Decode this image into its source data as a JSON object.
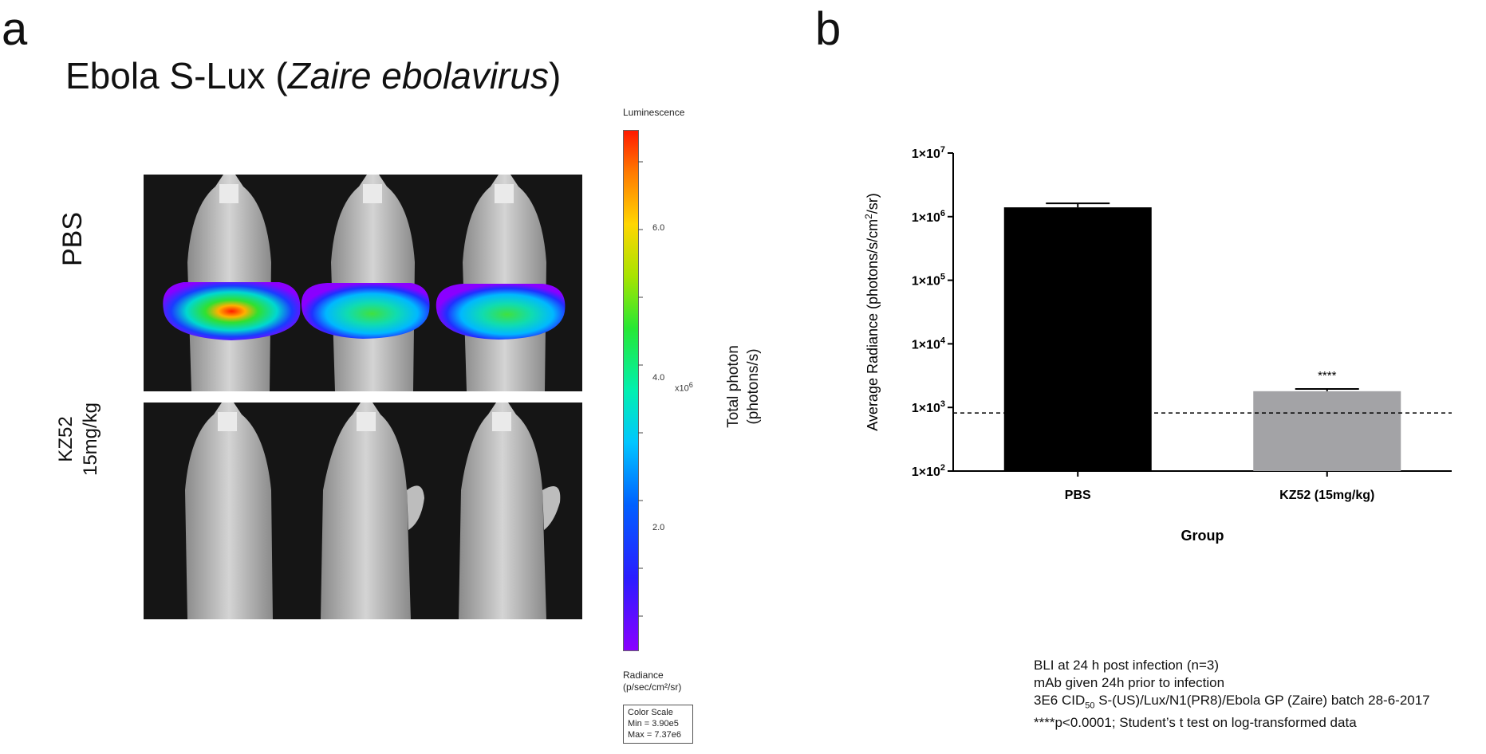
{
  "panel_a": {
    "letter": "a",
    "title_prefix": "Ebola S-Lux (",
    "title_italic": "Zaire ebolavirus",
    "title_suffix": ")",
    "group_pbs": "PBS",
    "group_kz52_line1": "KZ52",
    "group_kz52_line2": "15mg/kg",
    "colorbar": {
      "top_label": "Luminescence",
      "ticks": [
        "6.0",
        "4.0",
        "2.0"
      ],
      "multiplier": "x10",
      "multiplier_exp": "6",
      "unit_line1": "Radiance",
      "unit_line2": "(p/sec/cm²/sr)",
      "scale_title": "Color Scale",
      "scale_min": "Min = 3.90e5",
      "scale_max": "Max = 7.37e6",
      "side_label_line1": "Total photon",
      "side_label_line2": "(photons/s)"
    }
  },
  "panel_b": {
    "letter": "b",
    "notes": {
      "line1": "BLI at 24 h post infection (n=3)",
      "line2": "mAb given 24h prior to infection",
      "line3_pre": "3E6 CID",
      "line3_sub": "50",
      "line3_post": " S-(US)/Lux/N1(PR8)/Ebola GP (Zaire) batch 28-6-2017",
      "line4": "****p<0.0001; Student’s t test on log-transformed data"
    }
  },
  "chart_data": {
    "type": "bar",
    "categories": [
      "PBS",
      "KZ52 (15mg/kg)"
    ],
    "values": [
      1400000,
      1800
    ],
    "errors_upper": [
      1620000,
      1950
    ],
    "colors": [
      "#000000",
      "#a3a3a6"
    ],
    "significance": [
      "",
      "****"
    ],
    "xlabel": "Group",
    "ylabel": "Average Radiance (photons/s/cm²/sr)",
    "ylabel_parts": {
      "pre": "Average Radiance (photons/s/cm",
      "sup": "2",
      "post": "/sr)"
    },
    "y_scale": "log",
    "ylim": [
      100,
      10000000
    ],
    "yticks": [
      {
        "value": 100,
        "base": "1×10",
        "exp": "2"
      },
      {
        "value": 1000,
        "base": "1×10",
        "exp": "3"
      },
      {
        "value": 10000,
        "base": "1×10",
        "exp": "4"
      },
      {
        "value": 100000,
        "base": "1×10",
        "exp": "5"
      },
      {
        "value": 1000000,
        "base": "1×10",
        "exp": "6"
      },
      {
        "value": 10000000,
        "base": "1×10",
        "exp": "7"
      }
    ],
    "threshold": 820,
    "grid": false
  }
}
